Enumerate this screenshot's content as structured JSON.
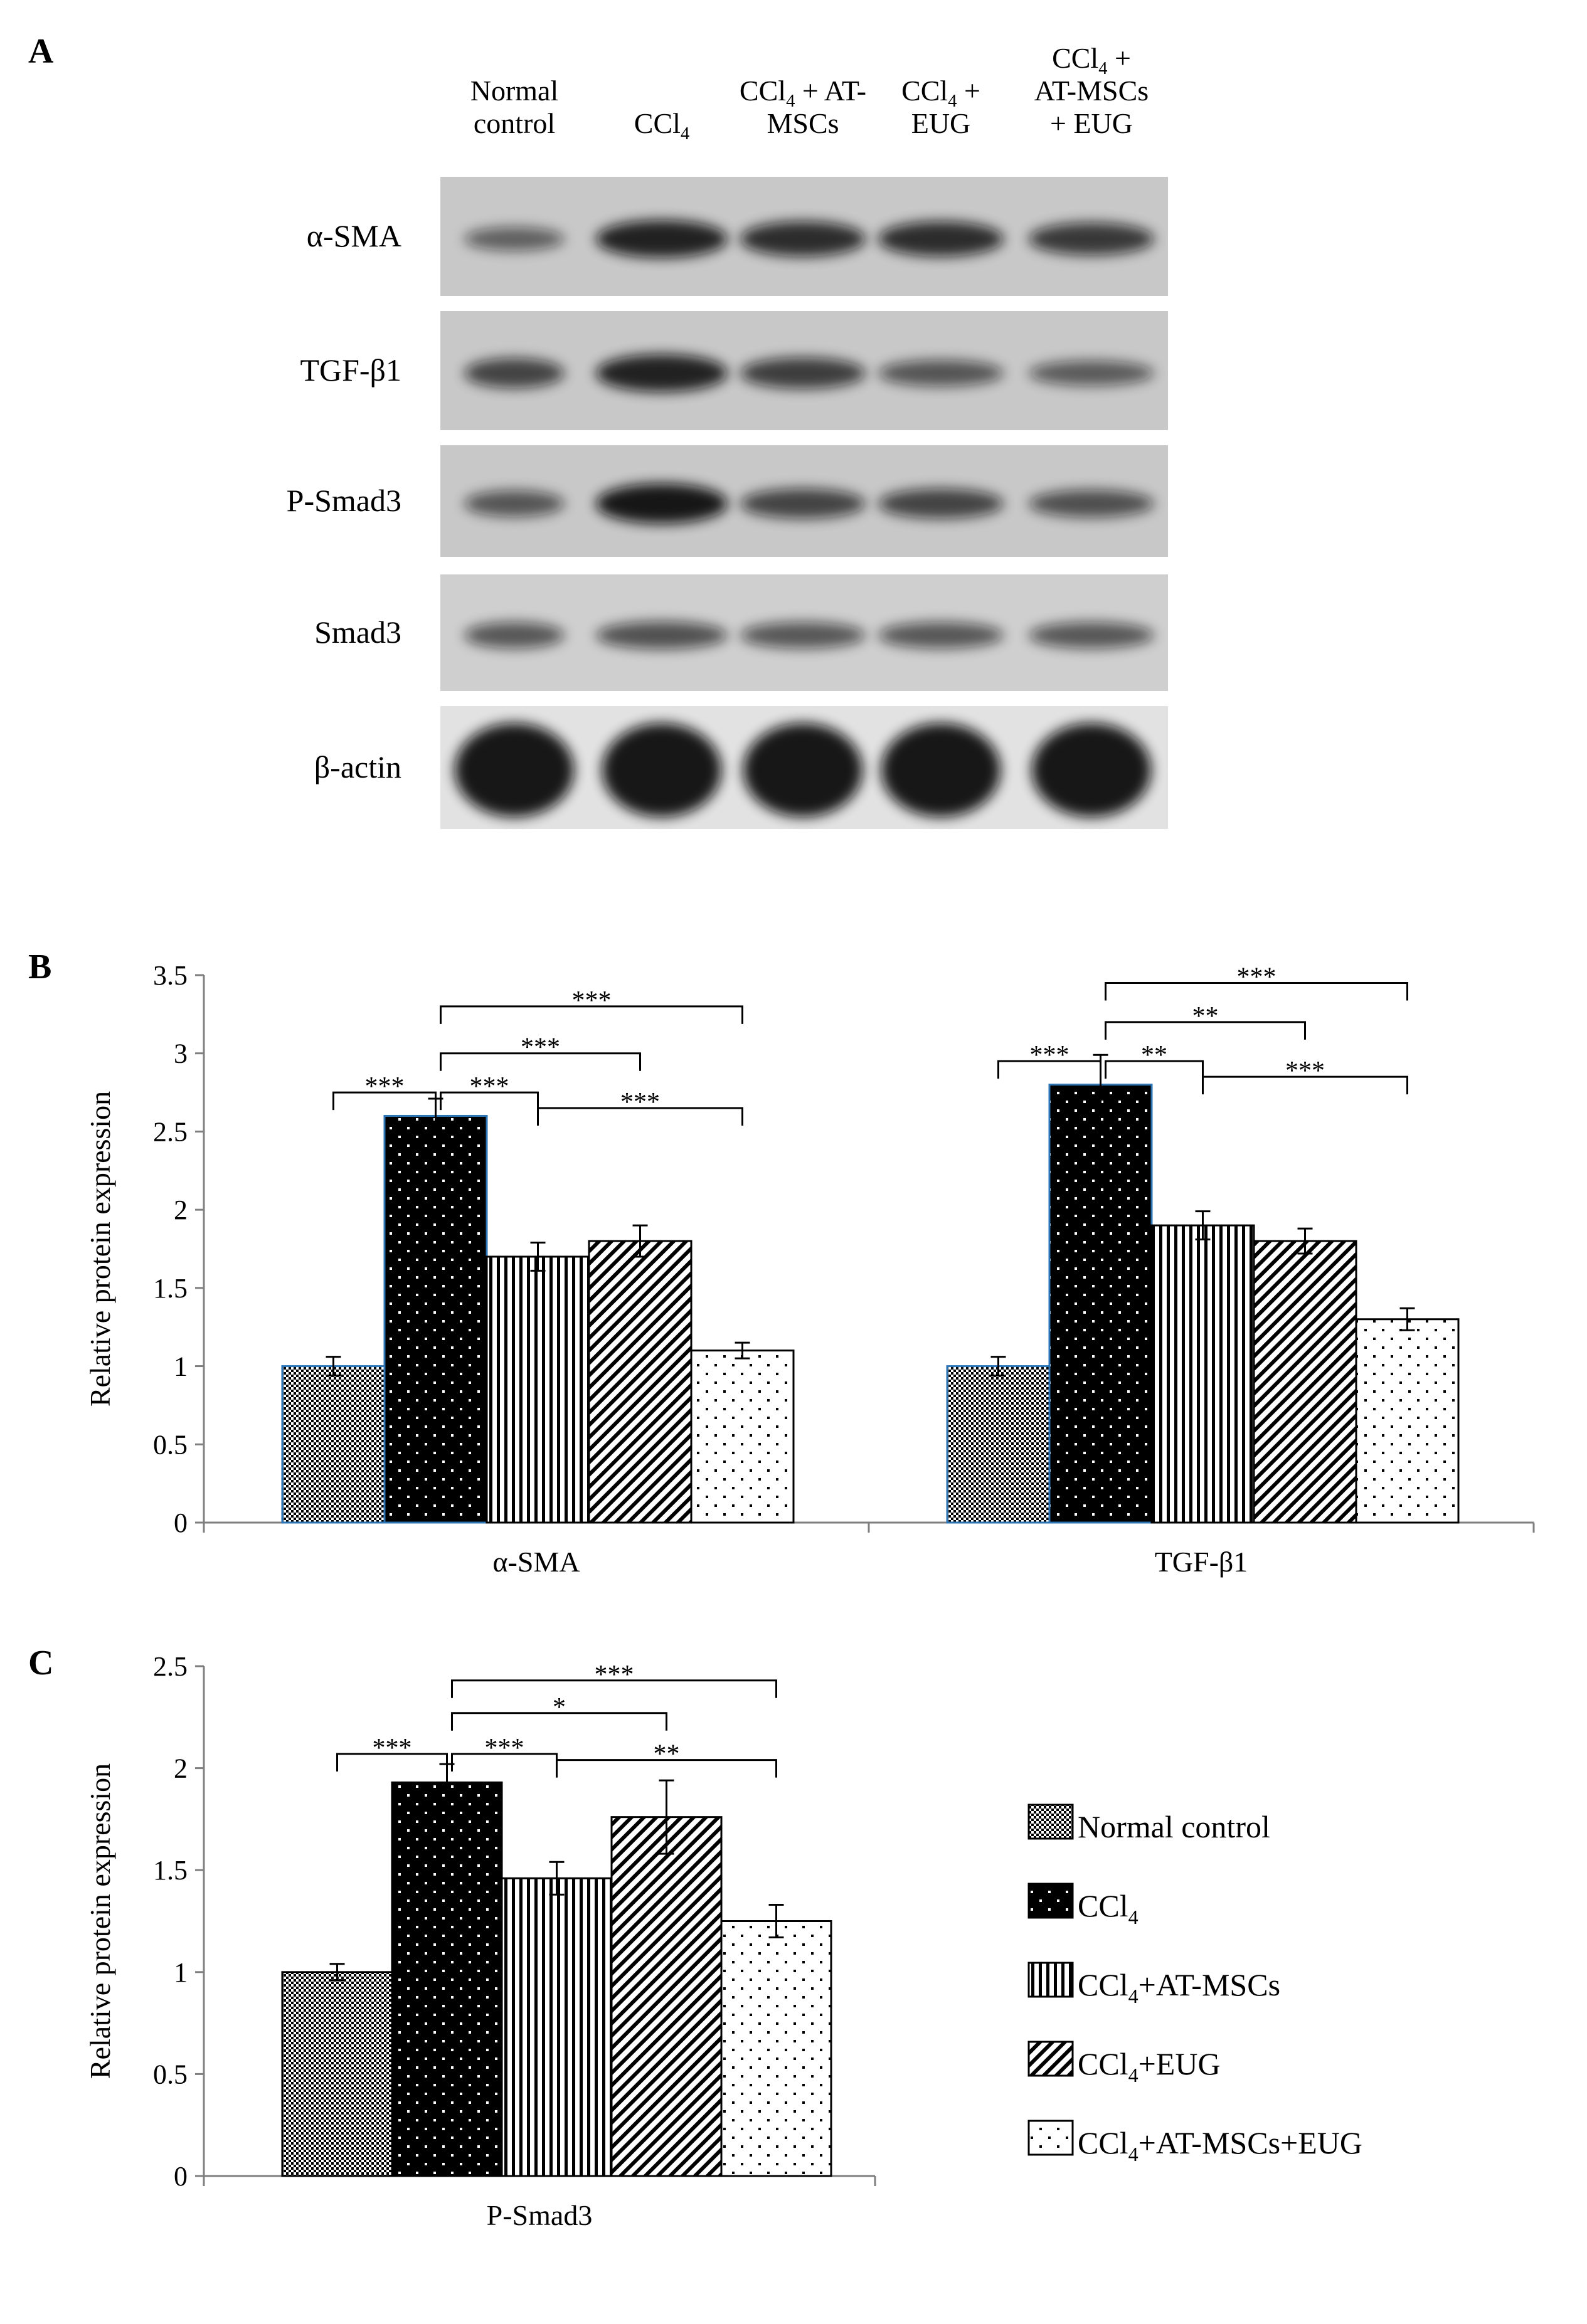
{
  "panel_a": {
    "panel_label": "A",
    "lane_headers": [
      [
        "Normal",
        "control"
      ],
      [
        "CCl4"
      ],
      [
        "CCl4 + AT-",
        "MSCs"
      ],
      [
        "CCl4 +",
        "EUG"
      ],
      [
        "CCl4 +",
        "AT-MSCs",
        "+ EUG"
      ]
    ],
    "blots": [
      {
        "label": "α-SMA",
        "intensity": [
          0.35,
          0.9,
          0.8,
          0.8,
          0.7
        ]
      },
      {
        "label": "TGF-β1",
        "intensity": [
          0.6,
          0.9,
          0.65,
          0.45,
          0.4
        ]
      },
      {
        "label": "P-Smad3",
        "intensity": [
          0.45,
          1.0,
          0.6,
          0.6,
          0.5
        ]
      },
      {
        "label": "Smad3",
        "intensity": [
          0.45,
          0.5,
          0.45,
          0.45,
          0.45
        ]
      },
      {
        "label": "β-actin",
        "intensity": [
          1.0,
          1.0,
          1.0,
          1.0,
          1.0
        ]
      }
    ]
  },
  "legend": {
    "entries": [
      {
        "prefix": "Normal control",
        "sub": "",
        "suffix": ""
      },
      {
        "prefix": "CCl",
        "sub": "4",
        "suffix": ""
      },
      {
        "prefix": "CCl",
        "sub": "4",
        "suffix": "+AT-MSCs"
      },
      {
        "prefix": "CCl",
        "sub": "4",
        "suffix": "+EUG"
      },
      {
        "prefix": "CCl",
        "sub": "4",
        "suffix": "+AT-MSCs+EUG"
      }
    ]
  },
  "chart_data": [
    {
      "type": "bar",
      "panel_label": "B",
      "ylabel": "Relative protein expression",
      "ylim": [
        0,
        3.5
      ],
      "yticks": [
        "0",
        "0.5",
        "1",
        "1.5",
        "2",
        "2.5",
        "3",
        "3.5"
      ],
      "categories": [
        "α-SMA",
        "TGF-β1"
      ],
      "series": [
        {
          "name": "Normal control",
          "values": [
            1.0,
            1.0
          ],
          "errors": [
            0.06,
            0.06
          ]
        },
        {
          "name": "CCl4",
          "values": [
            2.6,
            2.8
          ],
          "errors": [
            0.11,
            0.19
          ]
        },
        {
          "name": "CCl4+AT-MSCs",
          "values": [
            1.7,
            1.9
          ],
          "errors": [
            0.09,
            0.09
          ]
        },
        {
          "name": "CCl4+EUG",
          "values": [
            1.8,
            1.8
          ],
          "errors": [
            0.1,
            0.08
          ]
        },
        {
          "name": "CCl4+AT-MSCs+EUG",
          "values": [
            1.1,
            1.3
          ],
          "errors": [
            0.05,
            0.07
          ]
        }
      ],
      "significance": [
        {
          "group": 0,
          "from": 0,
          "to": 1,
          "label": "***",
          "level": 2.75
        },
        {
          "group": 0,
          "from": 1,
          "to": 2,
          "label": "***",
          "level": 2.75
        },
        {
          "group": 0,
          "from": 1,
          "to": 3,
          "label": "***",
          "level": 3.0
        },
        {
          "group": 0,
          "from": 1,
          "to": 4,
          "label": "***",
          "level": 3.3
        },
        {
          "group": 0,
          "from": 2,
          "to": 4,
          "label": "***",
          "level": 2.65
        },
        {
          "group": 1,
          "from": 0,
          "to": 1,
          "label": "***",
          "level": 2.95
        },
        {
          "group": 1,
          "from": 1,
          "to": 2,
          "label": "**",
          "level": 2.95
        },
        {
          "group": 1,
          "from": 1,
          "to": 3,
          "label": "**",
          "level": 3.2
        },
        {
          "group": 1,
          "from": 1,
          "to": 4,
          "label": "***",
          "level": 3.45
        },
        {
          "group": 1,
          "from": 2,
          "to": 4,
          "label": "***",
          "level": 2.85
        }
      ]
    },
    {
      "type": "bar",
      "panel_label": "C",
      "ylabel": "Relative protein expression",
      "ylim": [
        0,
        2.5
      ],
      "yticks": [
        "0",
        "0.5",
        "1",
        "1.5",
        "2",
        "2.5"
      ],
      "categories": [
        "P-Smad3"
      ],
      "series": [
        {
          "name": "Normal control",
          "values": [
            1.0
          ],
          "errors": [
            0.04
          ]
        },
        {
          "name": "CCl4",
          "values": [
            1.93
          ],
          "errors": [
            0.09
          ]
        },
        {
          "name": "CCl4+AT-MSCs",
          "values": [
            1.46
          ],
          "errors": [
            0.08
          ]
        },
        {
          "name": "CCl4+EUG",
          "values": [
            1.76
          ],
          "errors": [
            0.18
          ]
        },
        {
          "name": "CCl4+AT-MSCs+EUG",
          "values": [
            1.25
          ],
          "errors": [
            0.08
          ]
        }
      ],
      "significance": [
        {
          "group": 0,
          "from": 0,
          "to": 1,
          "label": "***",
          "level": 2.07
        },
        {
          "group": 0,
          "from": 1,
          "to": 2,
          "label": "***",
          "level": 2.07
        },
        {
          "group": 0,
          "from": 1,
          "to": 3,
          "label": "*",
          "level": 2.27
        },
        {
          "group": 0,
          "from": 1,
          "to": 4,
          "label": "***",
          "level": 2.43
        },
        {
          "group": 0,
          "from": 2,
          "to": 4,
          "label": "**",
          "level": 2.04
        }
      ]
    }
  ],
  "colors": {
    "axis": "#7f7f7f",
    "bar_outline": "#000000",
    "bar_outline_highlight": "#2e75b6",
    "blot_background": "#c8c8c8",
    "band": "#111111"
  }
}
